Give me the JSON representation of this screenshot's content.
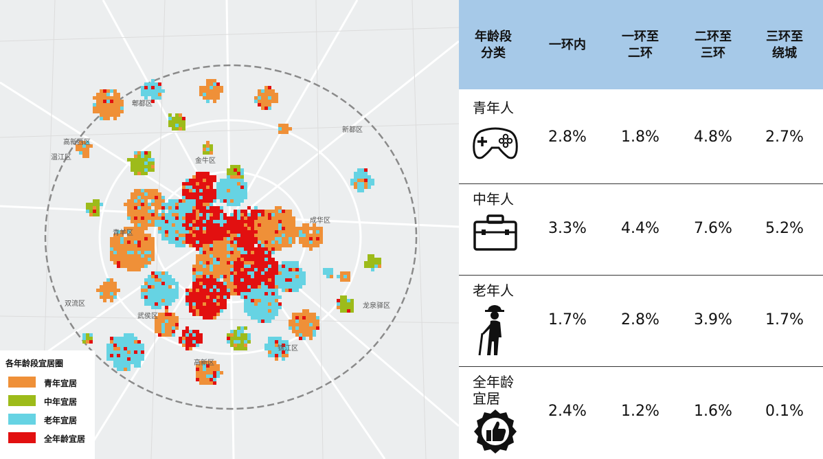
{
  "map": {
    "districts": [
      "郫都区",
      "新都区",
      "高新西区",
      "温江区",
      "金牛区",
      "成华区",
      "青羊区",
      "双流区",
      "龙泉驿区",
      "武侯区",
      "锦江区",
      "高新区"
    ],
    "colors": {
      "youth": "#ef9038",
      "middle": "#9dbb1a",
      "elderly": "#66d3e3",
      "all_ages": "#e21010",
      "road": "#ffffff",
      "ring": "#888888"
    }
  },
  "legend": {
    "title": "各年龄段宜居圈",
    "items": [
      {
        "label": "青年宜居",
        "color": "#ef9038"
      },
      {
        "label": "中年宜居",
        "color": "#9dbb1a"
      },
      {
        "label": "老年宜居",
        "color": "#66d3e3"
      },
      {
        "label": "全年龄宜居",
        "color": "#e21010"
      }
    ]
  },
  "table": {
    "header": {
      "category": "年龄段分类",
      "cols": [
        "一环内",
        "一环至二环",
        "二环至三环",
        "三环至绕城"
      ]
    },
    "header_lines": {
      "category": [
        "年龄段",
        "分类"
      ],
      "c0": [
        "一环内"
      ],
      "c1": [
        "一环至",
        "二环"
      ],
      "c2": [
        "二环至",
        "三环"
      ],
      "c3": [
        "三环至",
        "绕城"
      ]
    },
    "rows": [
      {
        "category": [
          "青年人"
        ],
        "icon": "game-controller-icon",
        "values": [
          "2.8%",
          "1.8%",
          "4.8%",
          "2.7%"
        ]
      },
      {
        "category": [
          "中年人"
        ],
        "icon": "briefcase-icon",
        "values": [
          "3.3%",
          "4.4%",
          "7.6%",
          "5.2%"
        ]
      },
      {
        "category": [
          "老年人"
        ],
        "icon": "elderly-person-with-cane-icon",
        "values": [
          "1.7%",
          "2.8%",
          "3.9%",
          "1.7%"
        ]
      },
      {
        "category": [
          "全年龄",
          "宜居"
        ],
        "icon": "thumbs-up-badge-icon",
        "values": [
          "2.4%",
          "1.2%",
          "1.6%",
          "0.1%"
        ]
      }
    ]
  }
}
